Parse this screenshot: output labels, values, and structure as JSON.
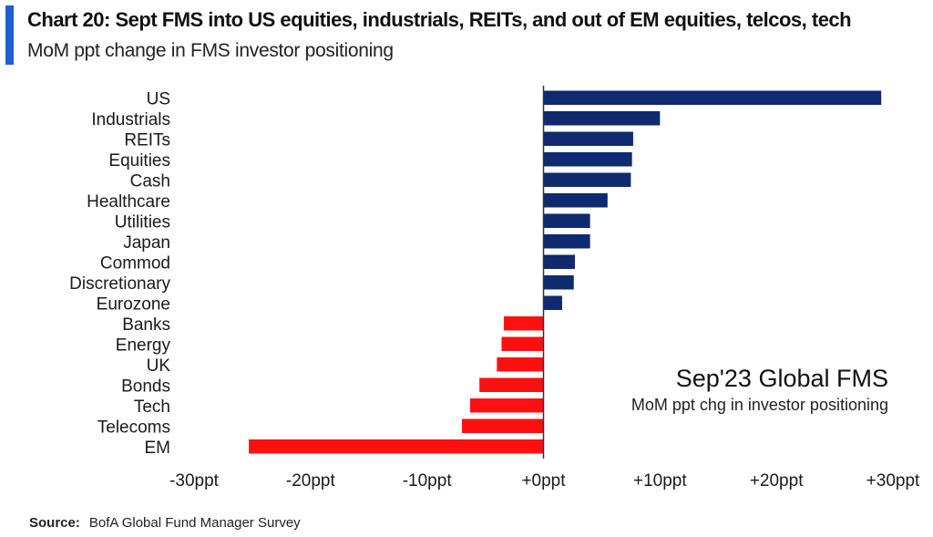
{
  "header": {
    "title": "Chart 20: Sept FMS into US equities, industrials, REITs, and out of EM equities, telcos, tech",
    "subtitle": "MoM ppt change in FMS investor positioning"
  },
  "source": {
    "label": "Source:",
    "text": "BofA Global Fund Manager Survey"
  },
  "annotation": {
    "title": "Sep'23 Global FMS",
    "subtitle": "MoM ppt chg in investor positioning"
  },
  "colors": {
    "positive": "#0f2a6e",
    "negative": "#ff1010",
    "accent": "#1f5fd1"
  },
  "chart_data": {
    "type": "bar",
    "orientation": "horizontal",
    "title": "Chart 20: Sept FMS into US equities, industrials, REITs, and out of EM equities, telcos, tech",
    "subtitle": "MoM ppt change in FMS investor positioning",
    "categories": [
      "US",
      "Industrials",
      "REITs",
      "Equities",
      "Cash",
      "Healthcare",
      "Utilities",
      "Japan",
      "Commod",
      "Discretionary",
      "Eurozone",
      "Banks",
      "Energy",
      "UK",
      "Bonds",
      "Tech",
      "Telecoms",
      "EM"
    ],
    "values": [
      29,
      10,
      7.7,
      7.6,
      7.5,
      5.5,
      4,
      4,
      2.7,
      2.6,
      1.6,
      -3.4,
      -3.6,
      -4,
      -5.5,
      -6.3,
      -7,
      -25.3
    ],
    "xlim": [
      -30,
      30
    ],
    "ticks": [
      -30,
      -20,
      -10,
      0,
      10,
      20,
      30
    ],
    "tick_labels": [
      "-30ppt",
      "-20ppt",
      "-10ppt",
      "+0ppt",
      "+10ppt",
      "+20ppt",
      "+30ppt"
    ],
    "grid": false,
    "legend": "none"
  }
}
